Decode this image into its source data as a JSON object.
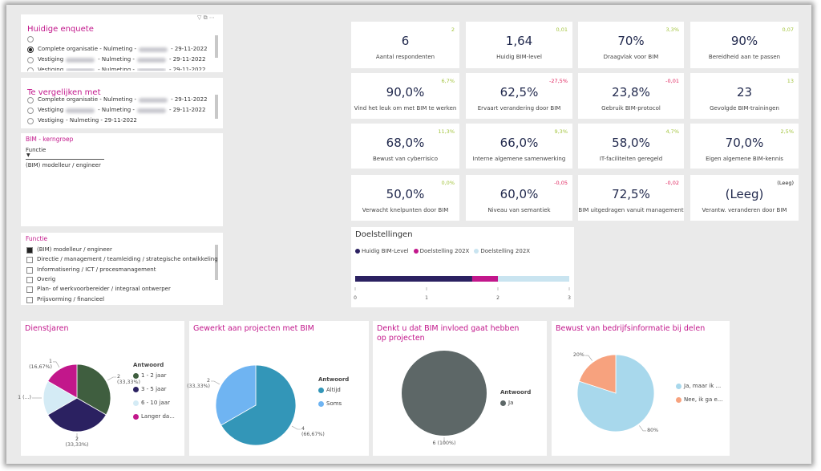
{
  "slicers": [
    {
      "title": "Huidige enquete",
      "selected": 0,
      "items": [
        [
          "Complete organisatie - Nulmeting -",
          "- 29-11-2022"
        ],
        [
          "Vestiging",
          "- Nulmeting -",
          "- 29-11-2022"
        ],
        [
          "Vestiging",
          "- Nulmeting -",
          "- 29-11-2022"
        ]
      ]
    },
    {
      "title": "Te vergelijken met",
      "items": [
        [
          "Complete organisatie - Nulmeting -",
          "- 29-11-2022"
        ],
        [
          "Vestiging",
          "- Nulmeting -",
          "- 29-11-2022"
        ],
        [
          "Vestiging",
          "- Nulmeting - 29-11-2022"
        ]
      ]
    }
  ],
  "kerngroep": {
    "title": "BIM - kerngroep",
    "field": "Functie",
    "value": "(BIM) modelleur / engineer"
  },
  "functie": {
    "title": "Functie",
    "checked": 0,
    "items": [
      "(BIM) modelleur / engineer",
      "Directie / management / teamleiding / strategische ontwikkeling",
      "Informatisering / ICT / procesmanagement",
      "Overig",
      "Plan- of werkvoorbereider / integraal ontwerper",
      "Prijsvorming / financieel"
    ]
  },
  "cards": [
    {
      "value": "6",
      "label": "Aantal respondenten",
      "delta": "2",
      "delta_color": "#a3c43e"
    },
    {
      "value": "1,64",
      "label": "Huidig BIM-level",
      "delta": "0,01",
      "delta_color": "#a3c43e"
    },
    {
      "value": "70%",
      "label": "Draagvlak voor BIM",
      "delta": "3,3%",
      "delta_color": "#a3c43e"
    },
    {
      "value": "90%",
      "label": "Bereidheid aan te passen",
      "delta": "0,07",
      "delta_color": "#a3c43e"
    },
    {
      "value": "90,0%",
      "label": "Vind het leuk om met BIM te werken",
      "delta": "6,7%",
      "delta_color": "#a3c43e"
    },
    {
      "value": "62,5%",
      "label": "Ervaart verandering door BIM",
      "delta": "-27,5%",
      "delta_color": "#e0245e"
    },
    {
      "value": "23,8%",
      "label": "Gebruik BIM-protocol",
      "delta": "-0,01",
      "delta_color": "#e0245e"
    },
    {
      "value": "23",
      "label": "Gevolgde BIM-trainingen",
      "delta": "13",
      "delta_color": "#a3c43e"
    },
    {
      "value": "68,0%",
      "label": "Bewust van cyberrisico",
      "delta": "11,3%",
      "delta_color": "#a3c43e"
    },
    {
      "value": "66,0%",
      "label": "Interne algemene samenwerking",
      "delta": "9,3%",
      "delta_color": "#a3c43e"
    },
    {
      "value": "58,0%",
      "label": "IT-faciliteiten geregeld",
      "delta": "4,7%",
      "delta_color": "#a3c43e"
    },
    {
      "value": "70,0%",
      "label": "Eigen algemene BIM-kennis",
      "delta": "2,5%",
      "delta_color": "#a3c43e"
    },
    {
      "value": "50,0%",
      "label": "Verwacht knelpunten door BIM",
      "delta": "0,0%",
      "delta_color": "#a3c43e"
    },
    {
      "value": "60,0%",
      "label": "Niveau van semantiek",
      "delta": "-0,05",
      "delta_color": "#e0245e"
    },
    {
      "value": "72,5%",
      "label": "BIM uitgedragen vanuit management",
      "delta": "-0,02",
      "delta_color": "#e0245e"
    },
    {
      "value": "(Leeg)",
      "label": "Verantw. veranderen door BIM",
      "delta": "(Leeg)",
      "delta_color": "#222222"
    }
  ],
  "charts": [
    {
      "type": "bar",
      "title": "Doelstellingen",
      "orientation": "horizontal",
      "stacked": true,
      "series": [
        {
          "name": "Huidig BIM-Level",
          "color": "#2b2161",
          "values": [
            1.64
          ]
        },
        {
          "name": "Doelstelling 202X",
          "color": "#c2178b",
          "values": [
            0.36
          ]
        },
        {
          "name": "Doelstelling 202X",
          "color": "#c9e4f0",
          "values": [
            1
          ]
        }
      ],
      "xlim": [
        0,
        3
      ],
      "xticks": [
        0,
        1,
        2,
        3
      ]
    },
    {
      "type": "pie",
      "title": "Dienstjaren",
      "legend_title": "Antwoord",
      "categories": [
        "1 - 2 jaar",
        "3 - 5 jaar",
        "6 - 10 jaar",
        "Langer da..."
      ],
      "values": [
        2,
        2,
        1,
        1
      ],
      "value_labels": [
        "2 (33,33%)",
        "2 (33,33%)",
        "1 (...)",
        "1 (16,67%)"
      ],
      "colors": [
        "#3f5e3f",
        "#2b2161",
        "#d4ebf5",
        "#c2178b"
      ]
    },
    {
      "type": "pie",
      "title": "Gewerkt aan projecten met BIM",
      "legend_title": "Antwoord",
      "categories": [
        "Altijd",
        "Soms"
      ],
      "values": [
        4,
        2
      ],
      "value_labels": [
        "4 (66,67%)",
        "2 (33,33%)"
      ],
      "colors": [
        "#3396b8",
        "#6fb4f2"
      ]
    },
    {
      "type": "pie",
      "title": "Denkt u dat BIM invloed gaat hebben op projecten",
      "legend_title": "Antwoord",
      "categories": [
        "Ja"
      ],
      "values": [
        6
      ],
      "value_labels": [
        "6 (100%)"
      ],
      "colors": [
        "#5d6767"
      ]
    },
    {
      "type": "pie",
      "title": "Bewust van bedrijfsinformatie bij delen",
      "categories": [
        "Ja, maar ik ...",
        "Nee, ik ga e..."
      ],
      "values": [
        80,
        20
      ],
      "value_labels": [
        "80%",
        "20%"
      ],
      "colors": [
        "#a8d8ec",
        "#f7a27e"
      ]
    }
  ]
}
